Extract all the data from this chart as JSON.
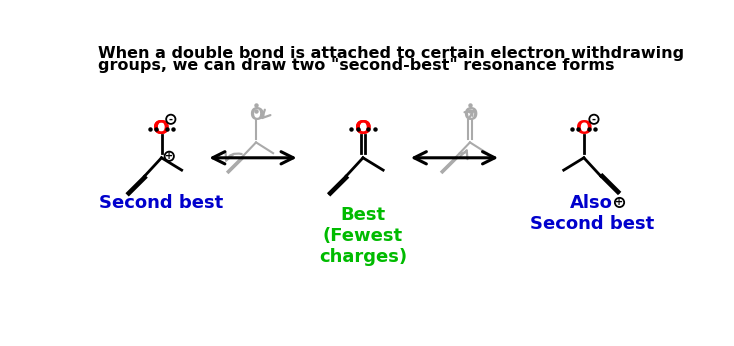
{
  "title_line1": "When a double bond is attached to certain electron withdrawing",
  "title_line2": "groups, we can draw two \"second-best\" resonance forms",
  "title_fontsize": 11.5,
  "title_fontweight": "bold",
  "bg_color": "#ffffff",
  "label_left": "Second best",
  "label_center": "Best\n(Fewest\ncharges)",
  "label_right": "Also\nSecond best",
  "label_color_left": "#0000cc",
  "label_color_center": "#00bb00",
  "label_color_right": "#0000cc",
  "oxygen_color": "#ff0000",
  "bond_color": "#000000",
  "ghost_color": "#aaaaaa",
  "arrow_color": "#000000",
  "curved_arrow_color": "#888888"
}
